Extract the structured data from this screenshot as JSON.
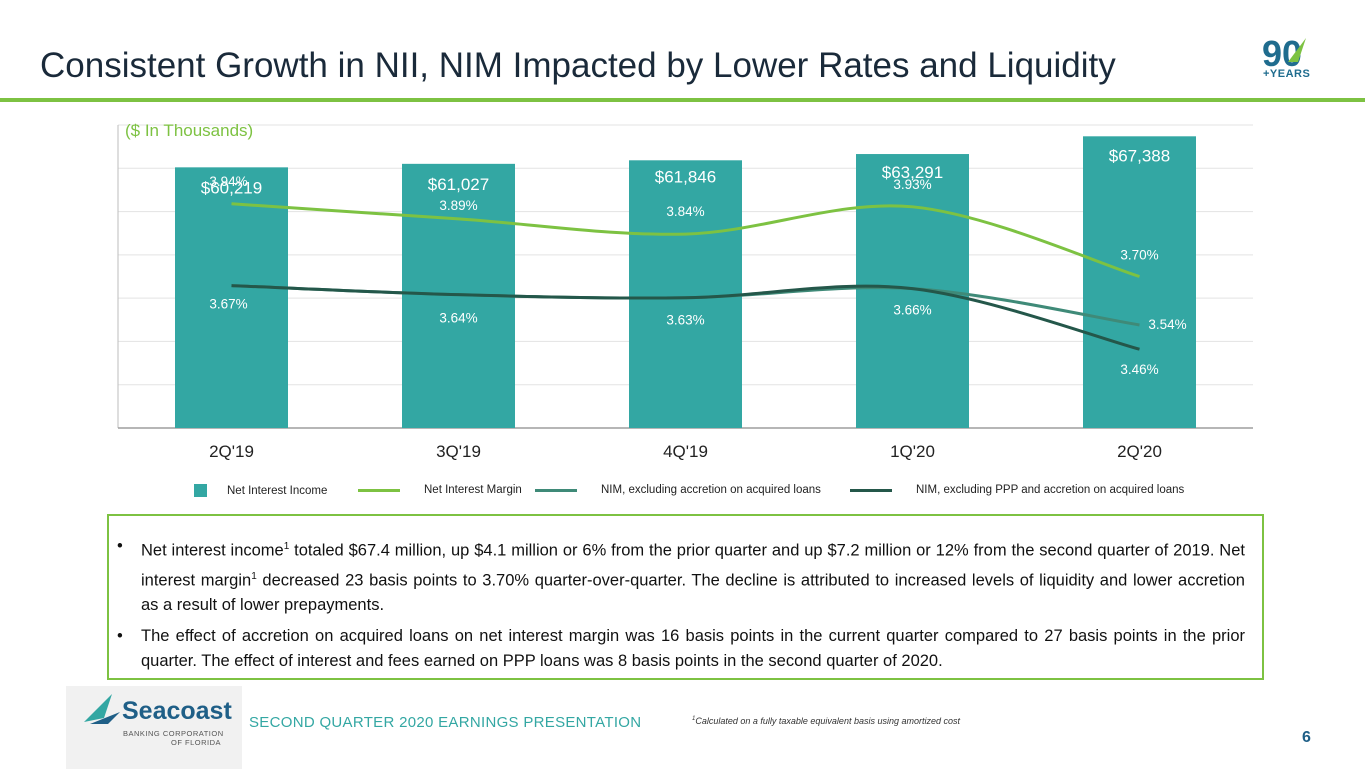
{
  "slide": {
    "title": "Consistent Growth in NII, NIM Impacted by Lower Rates and Liquidity",
    "units_label": "($ In Thousands)",
    "badge_number": "90",
    "badge_text": "+YEARS"
  },
  "chart_data": {
    "type": "bar",
    "categories": [
      "2Q'19",
      "3Q'19",
      "4Q'19",
      "1Q'20",
      "2Q'20"
    ],
    "bar_series": {
      "name": "Net Interest Income",
      "values": [
        60219,
        61027,
        61846,
        63291,
        67388
      ],
      "labels": [
        "$60,219",
        "$61,027",
        "$61,846",
        "$63,291",
        "$67,388"
      ],
      "color": "#33a7a3"
    },
    "line_series": [
      {
        "name": "Net Interest Margin",
        "values": [
          3.94,
          3.89,
          3.84,
          3.93,
          3.7
        ],
        "labels": [
          "3.94%",
          "3.89%",
          "3.84%",
          "3.93%",
          "3.70%"
        ],
        "color": "#7dc242"
      },
      {
        "name": "NIM, excluding accretion on acquired loans",
        "values": [
          3.67,
          3.64,
          3.63,
          3.66,
          3.54
        ],
        "labels": [
          "3.67%",
          "3.64%",
          "3.63%",
          "3.66%",
          "3.54%"
        ],
        "color": "#3f8a78"
      },
      {
        "name": "NIM, excluding PPP and accretion on acquired loans",
        "values": [
          3.67,
          3.64,
          3.63,
          3.66,
          3.46
        ],
        "labels": [
          "",
          "",
          "",
          "",
          "3.46%"
        ],
        "color": "#24574a"
      }
    ],
    "bar_axis_range": [
      0,
      70000
    ],
    "line_axis_range": [
      3.2,
      4.2
    ],
    "gridlines": true,
    "legend_position": "bottom"
  },
  "bullets": [
    {
      "p1": "Net interest income",
      "s1": "1",
      "p2": " totaled $67.4 million, up $4.1 million or 6% from the prior quarter and up $7.2 million or 12% from the second quarter of 2019. Net interest margin",
      "s2": "1",
      "p3": " decreased 23 basis points to 3.70% quarter-over-quarter. The decline is attributed to increased levels of liquidity and lower accretion as a result of lower prepayments."
    },
    {
      "p1": "The effect of accretion on acquired loans on net interest margin was 16 basis points in the current quarter compared to 27 basis points in the prior quarter. The effect of interest and fees earned on PPP loans was 8 basis points in the second quarter of 2020."
    }
  ],
  "footer": {
    "logo_name": "Seacoast",
    "logo_sub1": "BANKING CORPORATION",
    "logo_sub2": "OF FLORIDA",
    "label": "SECOND QUARTER 2020 EARNINGS PRESENTATION",
    "footnote_mark": "1",
    "footnote": "Calculated on a fully taxable equivalent basis using amortized cost",
    "page_number": "6"
  }
}
